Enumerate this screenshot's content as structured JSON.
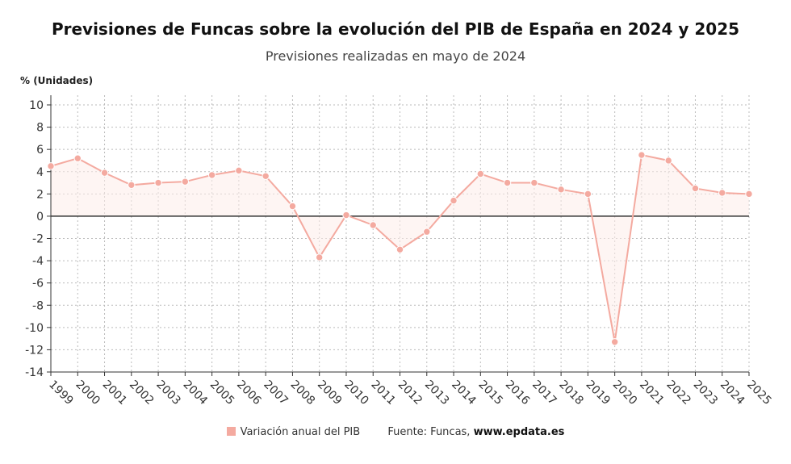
{
  "header": {
    "title": "Previsiones de Funcas sobre la evolución del PIB de España en 2024 y 2025",
    "subtitle": "Previsiones realizadas en mayo de 2024"
  },
  "legend": {
    "series_label": "Variación anual del PIB",
    "source_label": "Fuente: Funcas,",
    "source_url": "www.epdata.es"
  },
  "colors": {
    "series": "#f4aaa0",
    "fill": "#fdecea",
    "zero_line": "#333333",
    "grid": "#bbbbbb"
  },
  "chart_data": {
    "type": "line",
    "title": "Previsiones de Funcas sobre la evolución del PIB de España en 2024 y 2025",
    "subtitle": "Previsiones realizadas en mayo de 2024",
    "xlabel": "",
    "ylabel": "% (Unidades)",
    "ylim": [
      -14,
      10
    ],
    "yticks": [
      10,
      8,
      6,
      4,
      2,
      0,
      -2,
      -4,
      -6,
      -8,
      -10,
      -12,
      -14
    ],
    "grid": true,
    "legend_position": "bottom",
    "categories": [
      "1999",
      "2000",
      "2001",
      "2002",
      "2003",
      "2004",
      "2005",
      "2006",
      "2007",
      "2008",
      "2009",
      "2010",
      "2011",
      "2012",
      "2013",
      "2014",
      "2015",
      "2016",
      "2017",
      "2018",
      "2019",
      "2020",
      "2021",
      "2022",
      "2023",
      "2024",
      "2025"
    ],
    "series": [
      {
        "name": "Variación anual del PIB",
        "values": [
          4.5,
          5.2,
          3.9,
          2.8,
          3.0,
          3.1,
          3.7,
          4.1,
          3.6,
          0.9,
          -3.7,
          0.1,
          -0.8,
          -3.0,
          -1.4,
          1.4,
          3.8,
          3.0,
          3.0,
          2.4,
          2.0,
          -11.3,
          5.5,
          5.0,
          2.5,
          2.1,
          2.0
        ]
      }
    ]
  }
}
